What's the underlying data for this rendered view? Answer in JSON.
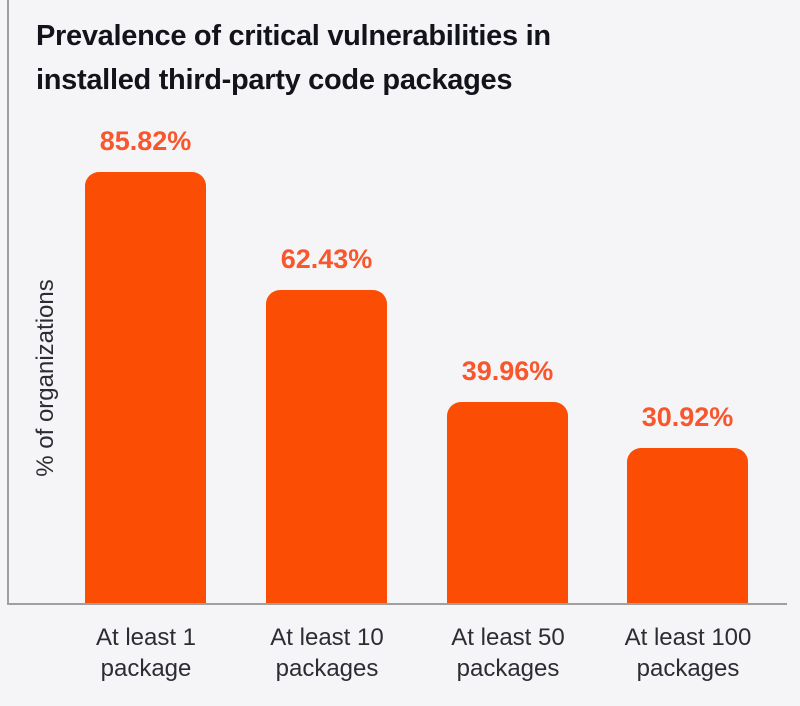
{
  "chart": {
    "title_line1": "Prevalence of critical vulnerabilities in",
    "title_line2": "installed third-party code packages",
    "ylabel": "% of organizations"
  },
  "chart_data": {
    "type": "bar",
    "title": "Prevalence of critical vulnerabilities in installed third-party code packages",
    "xlabel": "",
    "ylabel": "% of organizations",
    "categories": [
      "At least 1 package",
      "At least 10 packages",
      "At least 50 packages",
      "At least 100 packages"
    ],
    "values": [
      85.82,
      62.43,
      39.96,
      30.92
    ],
    "value_labels": [
      "85.82%",
      "62.43%",
      "39.96%",
      "30.92%"
    ],
    "ylim": [
      0,
      100
    ],
    "grid": false,
    "legend": "none",
    "bars": [
      {
        "value": 85.82,
        "value_label": "85.82%",
        "label_line1": "At least 1",
        "label_line2": "package"
      },
      {
        "value": 62.43,
        "value_label": "62.43%",
        "label_line1": "At least 10",
        "label_line2": "packages"
      },
      {
        "value": 39.96,
        "value_label": "39.96%",
        "label_line1": "At least 50",
        "label_line2": "packages"
      },
      {
        "value": 30.92,
        "value_label": "30.92%",
        "label_line1": "At least 100",
        "label_line2": "packages"
      }
    ]
  },
  "colors": {
    "background": "#f5f5f7",
    "bar": "#fb4d04",
    "value_label": "#f8562c",
    "title": "#13131b",
    "axis_label": "#2c2c34",
    "axis_line": "#a0a0a0"
  }
}
